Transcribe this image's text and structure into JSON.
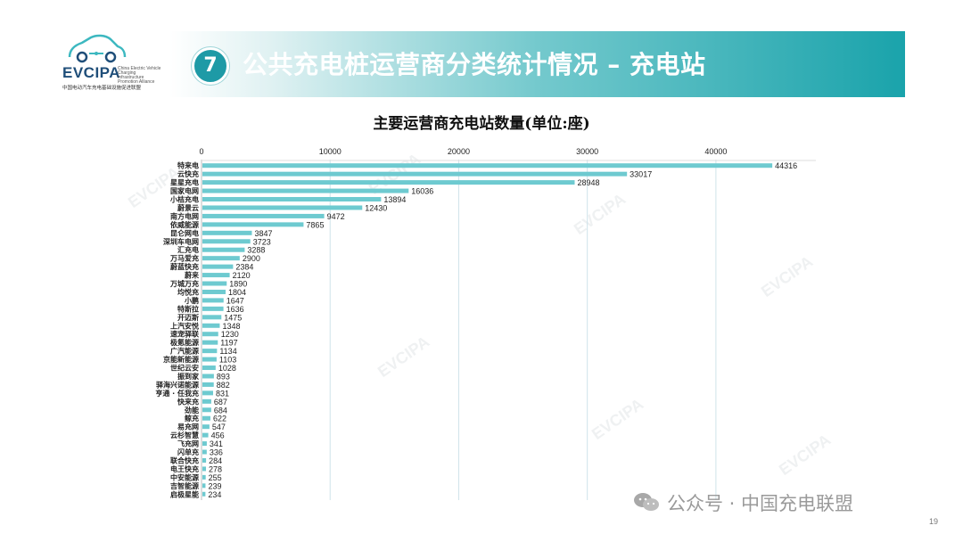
{
  "logo": {
    "brand": "EVCIPA",
    "english": "China Electric Vehicle Charging Infrastructure Promotion Alliance",
    "chinese": "中国电动汽车充电基础设施促进联盟"
  },
  "header": {
    "badge": "7",
    "title": "公共充电桩运营商分类统计情况 – 充电站"
  },
  "footer": {
    "text": "公众号 · 中国充电联盟",
    "page": "19"
  },
  "watermark": {
    "text": "EVCIPA"
  },
  "colors": {
    "bar": "#6ecad0",
    "banner_dark": "#1aa3ab",
    "badge": "#1e9aa6",
    "grid": "#cfe3ea"
  },
  "chart_data": {
    "type": "bar",
    "orientation": "horizontal",
    "title": "主要运营商充电站数量(单位:座)",
    "xlim": [
      0,
      45000
    ],
    "xticks": [
      0,
      10000,
      20000,
      30000,
      40000
    ],
    "grid": true,
    "categories": [
      "特来电",
      "云快充",
      "星星充电",
      "国家电网",
      "小桔充电",
      "蔚景云",
      "南方电网",
      "依威能源",
      "昆仑网电",
      "深圳车电网",
      "汇充电",
      "万马爱充",
      "蔚蓝快充",
      "蔚来",
      "万城万充",
      "均悦充",
      "小鹏",
      "特斯拉",
      "开迈斯",
      "上汽安悦",
      "速宠驿联",
      "极氪能源",
      "广汽能源",
      "京能新能源",
      "世纪云安",
      "振到家",
      "驿海兴诺能源",
      "亨通 · 任我充",
      "快来充",
      "劲能",
      "鲸充",
      "易充网",
      "云杉智慧",
      "飞充网",
      "闪单充",
      "联合快充",
      "电王快充",
      "中安能源",
      "吉智能源",
      "启极星能"
    ],
    "values": [
      44316,
      33017,
      28948,
      16036,
      13894,
      12430,
      9472,
      7865,
      3847,
      3723,
      3288,
      2900,
      2384,
      2120,
      1890,
      1804,
      1647,
      1636,
      1475,
      1348,
      1230,
      1197,
      1134,
      1103,
      1028,
      893,
      882,
      831,
      687,
      684,
      622,
      547,
      456,
      341,
      336,
      284,
      278,
      255,
      239,
      234
    ]
  }
}
